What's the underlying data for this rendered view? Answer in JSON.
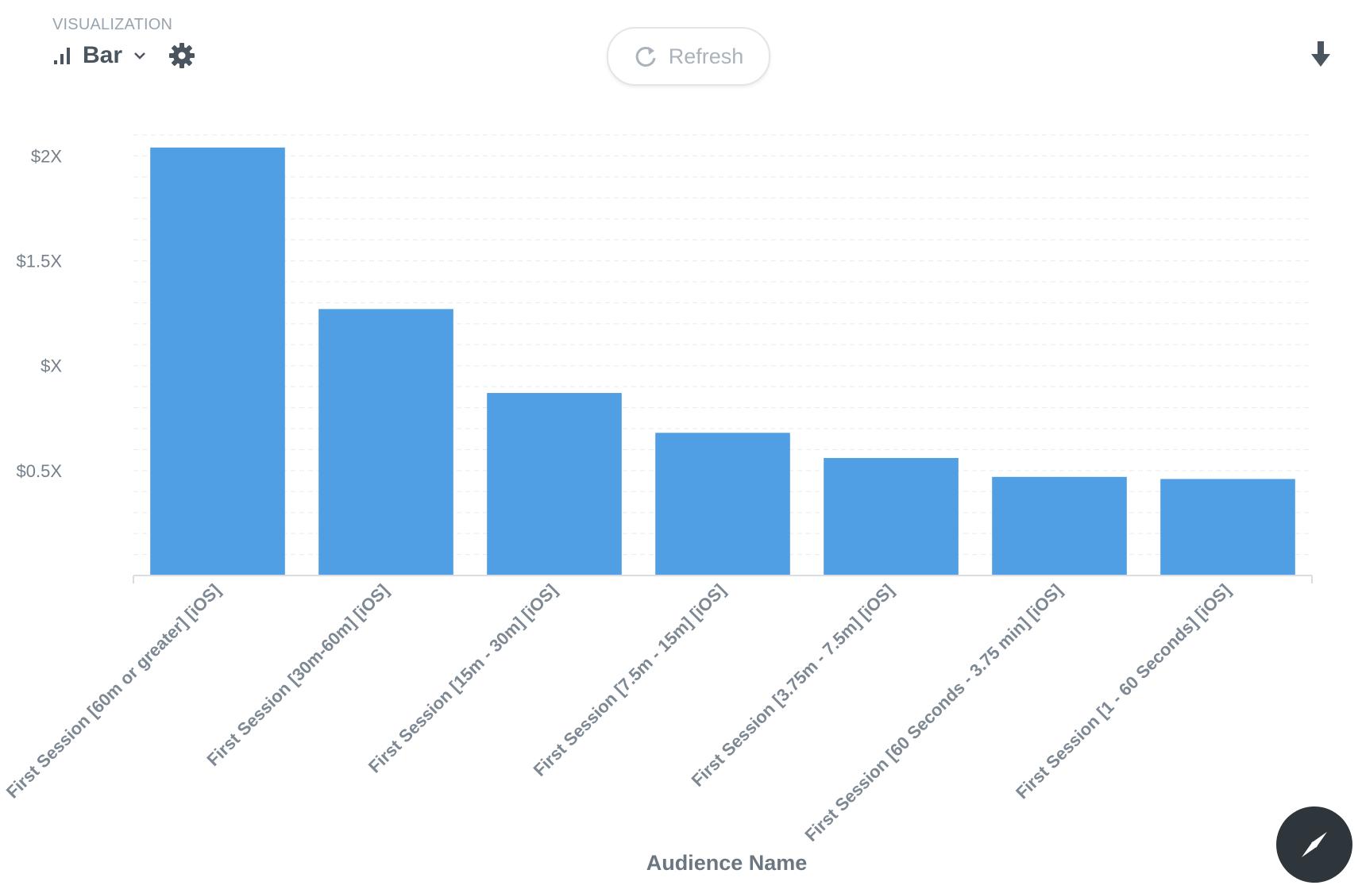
{
  "header": {
    "section_label": "VISUALIZATION",
    "viz_type": "Bar",
    "refresh_label": "Refresh",
    "icons": [
      "bar-chart-icon",
      "chevron-down-icon",
      "gear-icon",
      "refresh-icon",
      "download-icon",
      "compass-icon"
    ]
  },
  "colors": {
    "bar": "#509ee3",
    "grid": "#e8ebee",
    "axis": "#d9dde1"
  },
  "chart_data": {
    "type": "bar",
    "xlabel": "Audience Name",
    "ylabel": "",
    "categories": [
      "First Session [60m or greater] [iOS]",
      "First Session [30m-60m] [iOS]",
      "First Session [15m - 30m] [iOS]",
      "First Session [7.5m - 15m] [iOS]",
      "First Session [3.75m - 7.5m] [iOS]",
      "First Session [60 Seconds - 3.75 min] [iOS]",
      "First Session [1 - 60 Seconds] [iOS]"
    ],
    "values": [
      2.04,
      1.27,
      0.87,
      0.68,
      0.56,
      0.47,
      0.46
    ],
    "yticks": [
      {
        "value": 0.5,
        "label": "$0.5X"
      },
      {
        "value": 1.0,
        "label": "$X"
      },
      {
        "value": 1.5,
        "label": "$1.5X"
      },
      {
        "value": 2.0,
        "label": "$2X"
      }
    ],
    "ylim": [
      0,
      2.1
    ],
    "grid": true,
    "legend": false
  }
}
